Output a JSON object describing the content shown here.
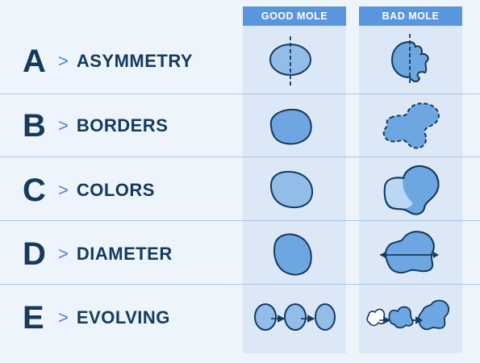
{
  "columns": {
    "good": "GOOD MOLE",
    "bad": "BAD MOLE"
  },
  "rows": [
    {
      "letter": "A",
      "separator": ">",
      "label": "ASYMMETRY"
    },
    {
      "letter": "B",
      "separator": ">",
      "label": "BORDERS"
    },
    {
      "letter": "C",
      "separator": ">",
      "label": "COLORS"
    },
    {
      "letter": "D",
      "separator": ">",
      "label": "DIAMETER"
    },
    {
      "letter": "E",
      "separator": ">",
      "label": "EVOLVING"
    }
  ],
  "colors": {
    "heading_text": "#143a5e",
    "separator": "#4a86cf",
    "column_header": "#5a96dd",
    "column_background": "#dce8f6",
    "page_background": "#eef4fb",
    "mole_fill_light": "#93bde9",
    "mole_fill_mid": "#6ea6e2",
    "mole_outline": "#143a5e"
  }
}
